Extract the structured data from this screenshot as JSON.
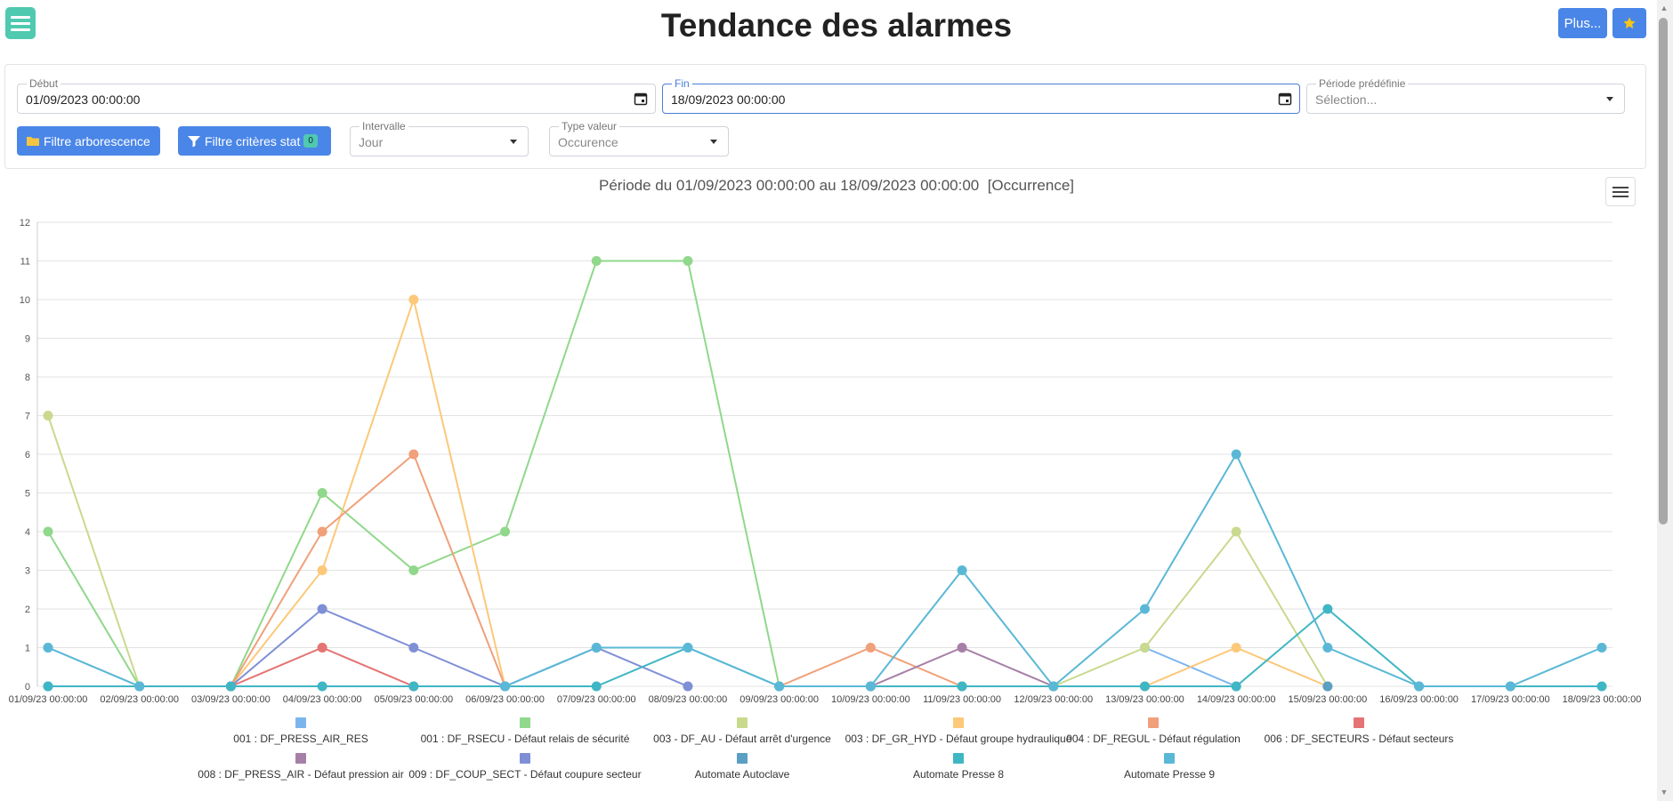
{
  "header": {
    "title": "Tendance des alarmes",
    "more_label": "Plus..."
  },
  "filters": {
    "debut": {
      "label": "Début",
      "value": "01/09/2023 00:00:00"
    },
    "fin": {
      "label": "Fin",
      "value": "18/09/2023 00:00:00"
    },
    "periode": {
      "label": "Période prédéfinie",
      "placeholder": "Sélection..."
    },
    "btn_arborescence": "Filtre arborescence",
    "btn_criteres": "Filtre critères stat",
    "criteres_count": "0",
    "intervalle": {
      "label": "Intervalle",
      "value": "Jour"
    },
    "type_valeur": {
      "label": "Type valeur",
      "value": "Occurence"
    }
  },
  "chart_data": {
    "type": "line",
    "title": "Période du 01/09/2023 00:00:00 au 18/09/2023 00:00:00  [Occurrence]",
    "ylim": [
      0,
      12
    ],
    "yticks": [
      "0",
      "1",
      "2",
      "3",
      "4",
      "5",
      "6",
      "7",
      "8",
      "9",
      "10",
      "11",
      "12"
    ],
    "categories": [
      "01/09/23 00:00:00",
      "02/09/23 00:00:00",
      "03/09/23 00:00:00",
      "04/09/23 00:00:00",
      "05/09/23 00:00:00",
      "06/09/23 00:00:00",
      "07/09/23 00:00:00",
      "08/09/23 00:00:00",
      "09/09/23 00:00:00",
      "10/09/23 00:00:00",
      "11/09/23 00:00:00",
      "12/09/23 00:00:00",
      "13/09/23 00:00:00",
      "14/09/23 00:00:00",
      "15/09/23 00:00:00",
      "16/09/23 00:00:00",
      "17/09/23 00:00:00",
      "18/09/23 00:00:00"
    ],
    "grid": true,
    "legend_position": "bottom",
    "series": [
      {
        "name": "001 : DF_PRESS_AIR_RES",
        "color": "#7cb5ec",
        "values": [
          1,
          0,
          0,
          null,
          null,
          null,
          null,
          null,
          null,
          null,
          null,
          null,
          1,
          0,
          null,
          null,
          null,
          null
        ]
      },
      {
        "name": "001 : DF_RSECU - Défaut relais de sécurité",
        "color": "#90d88b",
        "values": [
          4,
          0,
          0,
          5,
          3,
          4,
          11,
          11,
          0,
          null,
          null,
          null,
          null,
          null,
          null,
          null,
          null,
          null
        ]
      },
      {
        "name": "003 - DF_AU - Défaut arrêt d'urgence",
        "color": "#c9d98e",
        "values": [
          7,
          0,
          null,
          null,
          null,
          null,
          null,
          null,
          null,
          null,
          null,
          0,
          1,
          4,
          0,
          null,
          null,
          null
        ]
      },
      {
        "name": "003 : DF_GR_HYD - Défaut groupe hydraulique",
        "color": "#fcc87a",
        "values": [
          null,
          null,
          0,
          3,
          10,
          0,
          null,
          null,
          null,
          null,
          null,
          null,
          0,
          1,
          0,
          null,
          null,
          null
        ]
      },
      {
        "name": "004 : DF_REGUL - Défaut régulation",
        "color": "#f0a07a",
        "values": [
          null,
          null,
          0,
          4,
          6,
          0,
          null,
          null,
          0,
          1,
          0,
          null,
          null,
          null,
          null,
          null,
          null,
          null
        ]
      },
      {
        "name": "006 : DF_SECTEURS - Défaut secteurs",
        "color": "#e57373",
        "values": [
          null,
          null,
          0,
          1,
          0,
          null,
          null,
          null,
          null,
          null,
          null,
          null,
          null,
          null,
          null,
          null,
          null,
          null
        ]
      },
      {
        "name": "008 : DF_PRESS_AIR - Défaut pression air",
        "color": "#a67fa6",
        "values": [
          null,
          null,
          null,
          null,
          null,
          null,
          null,
          null,
          null,
          0,
          1,
          0,
          null,
          null,
          null,
          null,
          null,
          null
        ]
      },
      {
        "name": "009 : DF_COUP_SECT - Défaut coupure secteur",
        "color": "#7f8fd6",
        "values": [
          null,
          null,
          0,
          2,
          1,
          0,
          1,
          0,
          null,
          null,
          null,
          null,
          null,
          null,
          null,
          null,
          null,
          null
        ]
      },
      {
        "name": "Automate Autoclave",
        "color": "#5a9fc4",
        "values": [
          0,
          null,
          null,
          null,
          null,
          null,
          null,
          null,
          null,
          null,
          null,
          null,
          null,
          null,
          0,
          null,
          null,
          null
        ]
      },
      {
        "name": "Automate Presse 8",
        "color": "#3fb6c4",
        "values": [
          0,
          0,
          0,
          0,
          0,
          0,
          0,
          1,
          0,
          0,
          0,
          0,
          0,
          0,
          2,
          0,
          0,
          0
        ]
      },
      {
        "name": "Automate Presse 9",
        "color": "#5ab8d6",
        "values": [
          1,
          0,
          null,
          null,
          null,
          0,
          1,
          1,
          0,
          0,
          3,
          0,
          2,
          6,
          1,
          0,
          0,
          1
        ]
      }
    ]
  }
}
